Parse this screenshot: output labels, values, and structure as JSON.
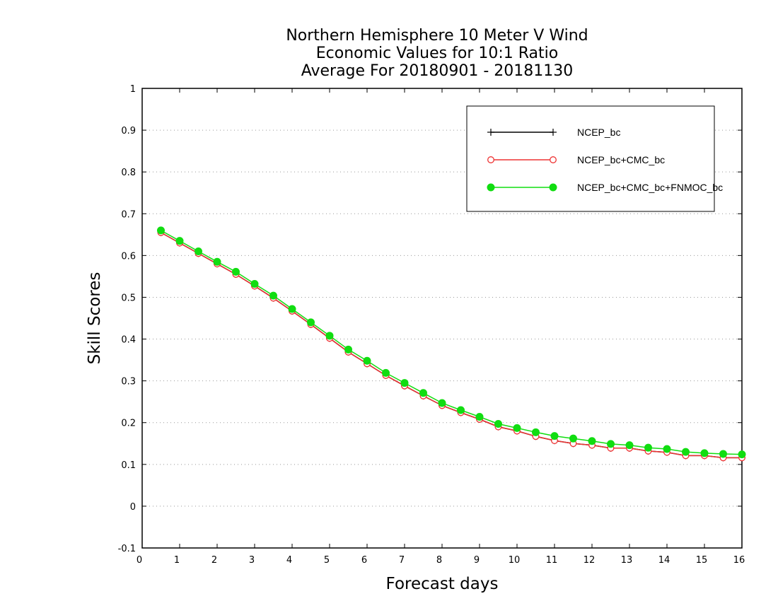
{
  "chart_data": {
    "type": "line",
    "title_lines": [
      "Northern Hemisphere 10 Meter V Wind",
      "Economic Values for 10:1 Ratio",
      "Average For 20180901 - 20181130"
    ],
    "xlabel": "Forecast days",
    "ylabel": "Skill Scores",
    "xlim": [
      0,
      16
    ],
    "ylim": [
      -0.1,
      1
    ],
    "xticks": [
      "0",
      "1",
      "2",
      "3",
      "4",
      "5",
      "6",
      "7",
      "8",
      "9",
      "10",
      "11",
      "12",
      "13",
      "14",
      "15",
      "16"
    ],
    "yticks": [
      "-0.1",
      "0",
      "0.1",
      "0.2",
      "0.3",
      "0.4",
      "0.5",
      "0.6",
      "0.7",
      "0.8",
      "0.9",
      "1"
    ],
    "grid": "dotted horizontal",
    "legend_position": "top-right",
    "x": [
      0.5,
      1,
      1.5,
      2,
      2.5,
      3,
      3.5,
      4,
      4.5,
      5,
      5.5,
      6,
      6.5,
      7,
      7.5,
      8,
      8.5,
      9,
      9.5,
      10,
      10.5,
      11,
      11.5,
      12,
      12.5,
      13,
      13.5,
      14,
      14.5,
      15,
      15.5,
      16
    ],
    "series": [
      {
        "name": "NCEP_bc",
        "color": "#000000",
        "marker": "plus",
        "values": [
          0.655,
          0.63,
          0.605,
          0.58,
          0.555,
          0.527,
          0.498,
          0.467,
          0.435,
          0.402,
          0.369,
          0.341,
          0.313,
          0.288,
          0.264,
          0.241,
          0.224,
          0.208,
          0.19,
          0.18,
          0.167,
          0.157,
          0.15,
          0.146,
          0.139,
          0.139,
          0.132,
          0.129,
          0.121,
          0.121,
          0.116,
          0.116
        ]
      },
      {
        "name": "NCEP_bc+CMC_bc",
        "color": "#ee3333",
        "marker": "open-circle",
        "values": [
          0.655,
          0.63,
          0.605,
          0.58,
          0.555,
          0.527,
          0.498,
          0.467,
          0.435,
          0.402,
          0.369,
          0.341,
          0.313,
          0.288,
          0.264,
          0.241,
          0.224,
          0.208,
          0.19,
          0.18,
          0.167,
          0.157,
          0.15,
          0.146,
          0.139,
          0.139,
          0.132,
          0.129,
          0.121,
          0.121,
          0.116,
          0.116
        ]
      },
      {
        "name": "NCEP_bc+CMC_bc+FNMOC_bc",
        "color": "#11dd11",
        "marker": "filled-circle",
        "values": [
          0.66,
          0.635,
          0.61,
          0.585,
          0.561,
          0.532,
          0.504,
          0.472,
          0.44,
          0.408,
          0.375,
          0.348,
          0.319,
          0.295,
          0.271,
          0.247,
          0.23,
          0.214,
          0.197,
          0.187,
          0.177,
          0.168,
          0.162,
          0.156,
          0.149,
          0.146,
          0.14,
          0.137,
          0.13,
          0.127,
          0.125,
          0.124
        ]
      }
    ]
  }
}
